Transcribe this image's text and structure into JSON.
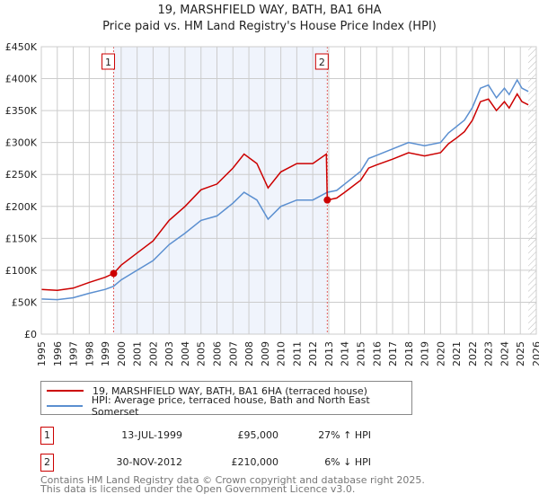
{
  "title": "19, MARSHFIELD WAY, BATH, BA1 6HA",
  "subtitle": "Price paid vs. HM Land Registry's House Price Index (HPI)",
  "chart_data": {
    "type": "line",
    "title": "19, MARSHFIELD WAY, BATH, BA1 6HA",
    "subtitle": "Price paid vs. HM Land Registry's House Price Index (HPI)",
    "xlim": [
      1995,
      2026
    ],
    "ylim": [
      0,
      450000
    ],
    "x_ticks": [
      "1995",
      "1996",
      "1997",
      "1998",
      "1999",
      "2000",
      "2001",
      "2002",
      "2003",
      "2004",
      "2005",
      "2006",
      "2007",
      "2008",
      "2009",
      "2010",
      "2011",
      "2012",
      "2013",
      "2014",
      "2015",
      "2016",
      "2017",
      "2018",
      "2019",
      "2020",
      "2021",
      "2022",
      "2023",
      "2024",
      "2025",
      "2026"
    ],
    "y_ticks": [
      {
        "value": 0,
        "label": "£0"
      },
      {
        "value": 50000,
        "label": "£50K"
      },
      {
        "value": 100000,
        "label": "£100K"
      },
      {
        "value": 150000,
        "label": "£150K"
      },
      {
        "value": 200000,
        "label": "£200K"
      },
      {
        "value": 250000,
        "label": "£250K"
      },
      {
        "value": 300000,
        "label": "£300K"
      },
      {
        "value": 350000,
        "label": "£350K"
      },
      {
        "value": 400000,
        "label": "£400K"
      },
      {
        "value": 450000,
        "label": "£450K"
      }
    ],
    "grid": true,
    "shaded_range": [
      1999.53,
      2012.91
    ],
    "forecast_hatch_from": 2025.5,
    "series": [
      {
        "name": "19, MARSHFIELD WAY, BATH, BA1 6HA (terraced house)",
        "color": "#cc0000",
        "points": [
          [
            1995,
            70000
          ],
          [
            1996,
            68600
          ],
          [
            1997,
            72000
          ],
          [
            1998,
            81000
          ],
          [
            1999,
            89000
          ],
          [
            1999.53,
            95000
          ],
          [
            2000,
            108000
          ],
          [
            2001,
            127000
          ],
          [
            2002,
            146000
          ],
          [
            2003,
            178000
          ],
          [
            2004,
            200000
          ],
          [
            2005,
            226000
          ],
          [
            2006,
            235000
          ],
          [
            2007,
            260000
          ],
          [
            2007.7,
            282000
          ],
          [
            2008.5,
            267000
          ],
          [
            2009.2,
            229000
          ],
          [
            2010,
            254000
          ],
          [
            2011,
            267000
          ],
          [
            2012,
            267000
          ],
          [
            2012.85,
            282000
          ],
          [
            2012.91,
            210000
          ],
          [
            2013.5,
            213000
          ],
          [
            2014,
            222000
          ],
          [
            2015,
            241000
          ],
          [
            2015.5,
            260000
          ],
          [
            2016,
            265000
          ],
          [
            2017,
            274000
          ],
          [
            2018,
            284000
          ],
          [
            2019,
            279000
          ],
          [
            2020,
            284000
          ],
          [
            2020.5,
            298000
          ],
          [
            2021,
            307000
          ],
          [
            2021.5,
            317000
          ],
          [
            2022,
            335000
          ],
          [
            2022.5,
            364000
          ],
          [
            2023,
            368000
          ],
          [
            2023.5,
            350000
          ],
          [
            2024,
            364000
          ],
          [
            2024.3,
            354000
          ],
          [
            2024.8,
            376000
          ],
          [
            2025.1,
            364000
          ],
          [
            2025.5,
            359000
          ]
        ]
      },
      {
        "name": "HPI: Average price, terraced house, Bath and North East Somerset",
        "color": "#5b8fd0",
        "points": [
          [
            1995,
            55000
          ],
          [
            1996,
            54000
          ],
          [
            1997,
            57000
          ],
          [
            1998,
            64000
          ],
          [
            1999,
            70000
          ],
          [
            1999.53,
            75000
          ],
          [
            2000,
            85000
          ],
          [
            2001,
            100000
          ],
          [
            2002,
            115000
          ],
          [
            2003,
            140000
          ],
          [
            2004,
            158000
          ],
          [
            2005,
            178000
          ],
          [
            2006,
            185000
          ],
          [
            2007,
            205000
          ],
          [
            2007.7,
            222000
          ],
          [
            2008.5,
            210000
          ],
          [
            2009.2,
            180000
          ],
          [
            2010,
            200000
          ],
          [
            2011,
            210000
          ],
          [
            2012,
            210000
          ],
          [
            2012.91,
            222000
          ],
          [
            2013.5,
            225000
          ],
          [
            2014,
            235000
          ],
          [
            2015,
            255000
          ],
          [
            2015.5,
            275000
          ],
          [
            2016,
            280000
          ],
          [
            2017,
            290000
          ],
          [
            2018,
            300000
          ],
          [
            2019,
            295000
          ],
          [
            2020,
            300000
          ],
          [
            2020.5,
            315000
          ],
          [
            2021,
            325000
          ],
          [
            2021.5,
            335000
          ],
          [
            2022,
            355000
          ],
          [
            2022.5,
            385000
          ],
          [
            2023,
            390000
          ],
          [
            2023.5,
            370000
          ],
          [
            2024,
            385000
          ],
          [
            2024.3,
            375000
          ],
          [
            2024.8,
            398000
          ],
          [
            2025.1,
            385000
          ],
          [
            2025.5,
            380000
          ]
        ]
      }
    ],
    "sales": [
      {
        "id": "1",
        "x": 1999.53,
        "value": 95000
      },
      {
        "id": "2",
        "x": 2012.91,
        "value": 210000
      }
    ]
  },
  "legend": {
    "property": "19, MARSHFIELD WAY, BATH, BA1 6HA (terraced house)",
    "hpi": "HPI: Average price, terraced house, Bath and North East Somerset"
  },
  "transactions": [
    {
      "id": "1",
      "date": "13-JUL-1999",
      "price": "£95,000",
      "hpi": "27% ↑ HPI"
    },
    {
      "id": "2",
      "date": "30-NOV-2012",
      "price": "£210,000",
      "hpi": "6% ↓ HPI"
    }
  ],
  "footer": {
    "line1": "Contains HM Land Registry data © Crown copyright and database right 2025.",
    "line2": "This data is licensed under the Open Government Licence v3.0."
  }
}
